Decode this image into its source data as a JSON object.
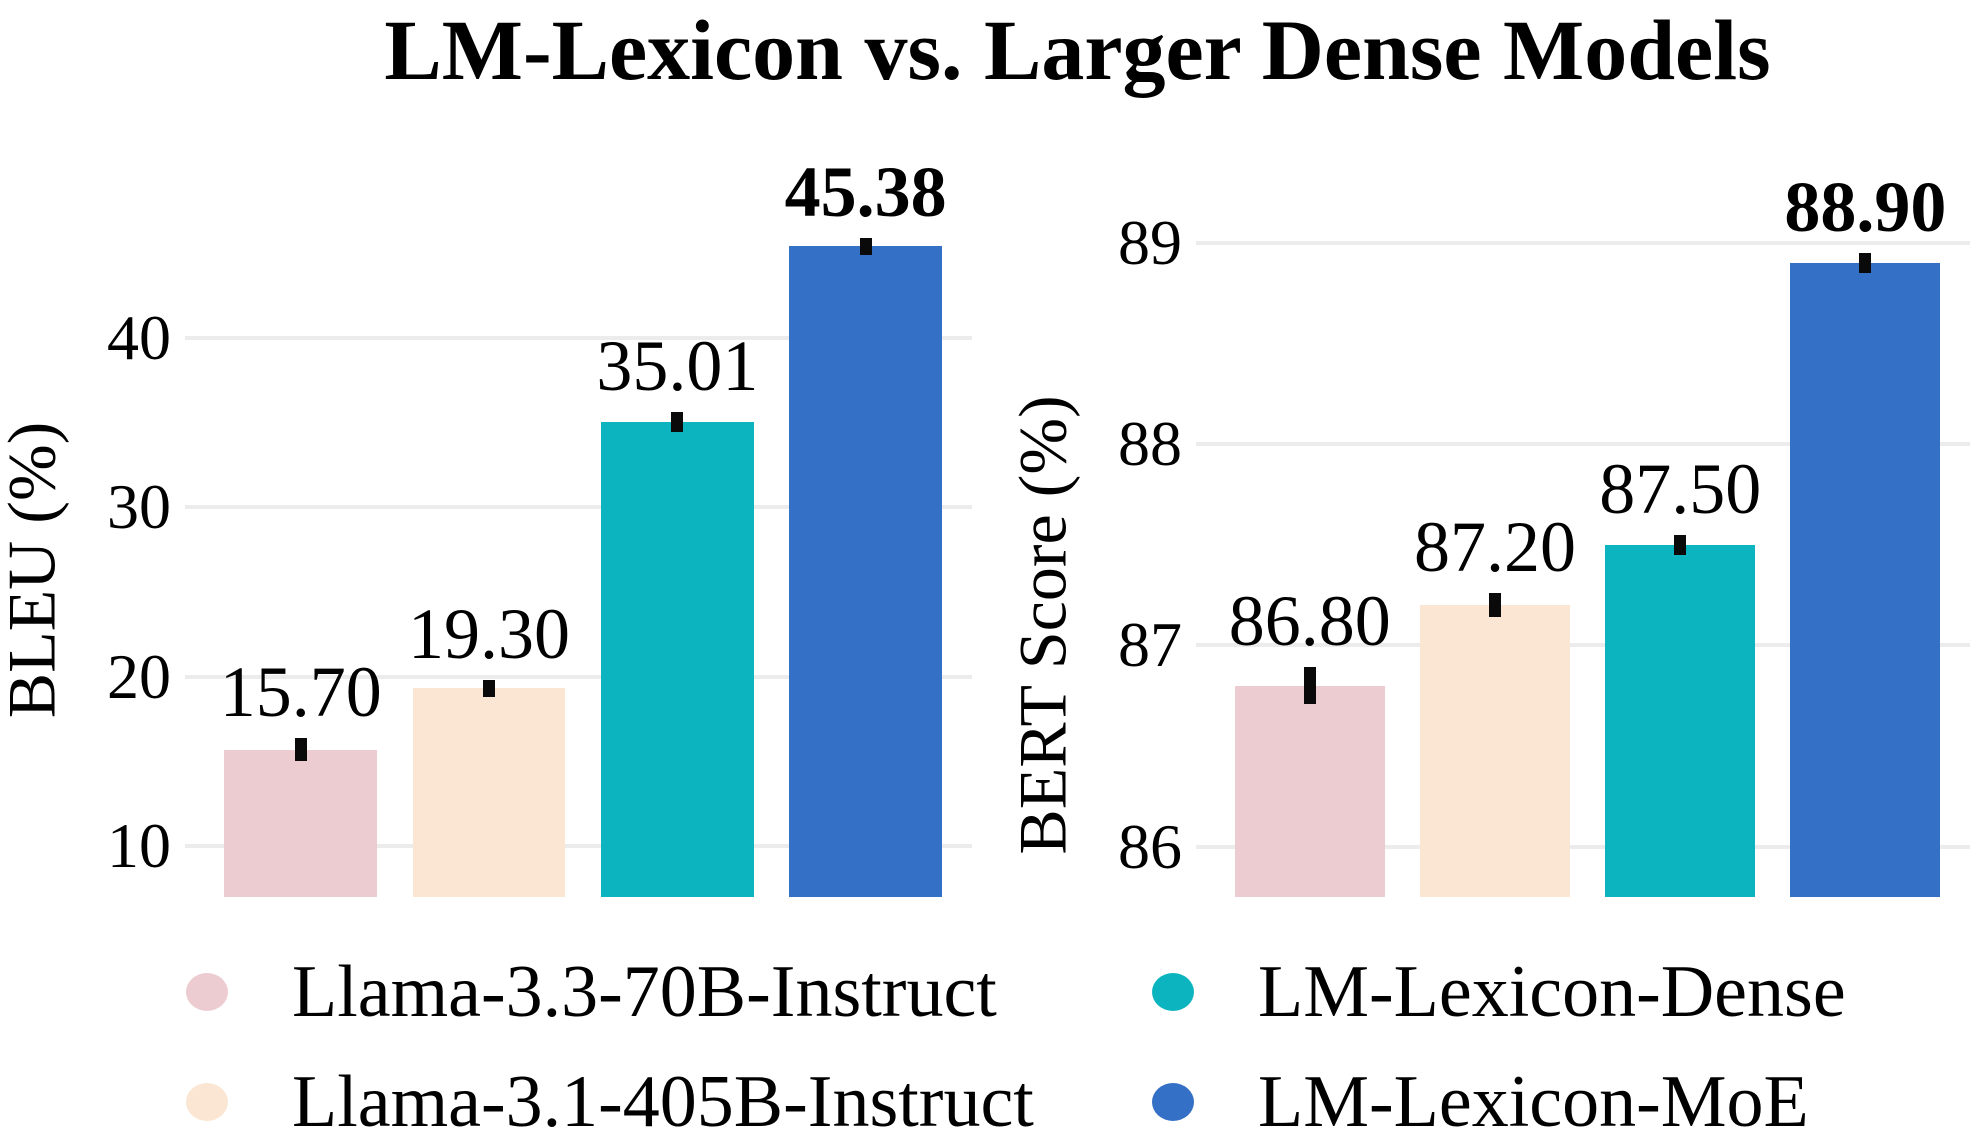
{
  "title": "LM-Lexicon vs. Larger Dense Models",
  "colors": {
    "pink": "#ECCBD1",
    "cream": "#FAE6D2",
    "teal": "#0CB4BF",
    "blue": "#3470C5",
    "grid": "#ECECEC",
    "text": "#000000"
  },
  "chart_data": [
    {
      "type": "bar",
      "name": "bleu",
      "title": "",
      "xlabel": "",
      "ylabel": "BLEU (%)",
      "categories": [
        "Llama-3.3-70B-Instruct",
        "Llama-3.1-405B-Instruct",
        "LM-Lexicon-Dense",
        "LM-Lexicon-MoE"
      ],
      "values": [
        15.7,
        19.3,
        35.01,
        45.38
      ],
      "value_labels": [
        "15.70",
        "19.30",
        "35.01",
        "45.38"
      ],
      "errors": [
        0.7,
        0.5,
        0.6,
        0.5
      ],
      "series_colors": [
        "pink",
        "cream",
        "teal",
        "blue"
      ],
      "ylim": [
        7.0,
        50.0
      ],
      "yticks": [
        10,
        20,
        30,
        40
      ],
      "ytick_labels": [
        "10",
        "20",
        "30",
        "40"
      ],
      "grid": true,
      "bold_value_index": 3,
      "legend_position": "below"
    },
    {
      "type": "bar",
      "name": "bert-score",
      "title": "",
      "xlabel": "",
      "ylabel": "BERT Score (%)",
      "categories": [
        "Llama-3.3-70B-Instruct",
        "Llama-3.1-405B-Instruct",
        "LM-Lexicon-Dense",
        "LM-Lexicon-MoE"
      ],
      "values": [
        86.8,
        87.2,
        87.5,
        88.9
      ],
      "value_labels": [
        "86.80",
        "87.20",
        "87.50",
        "88.90"
      ],
      "errors": [
        0.09,
        0.06,
        0.05,
        0.05
      ],
      "series_colors": [
        "pink",
        "cream",
        "teal",
        "blue"
      ],
      "ylim": [
        85.75,
        89.37
      ],
      "yticks": [
        86,
        87,
        88,
        89
      ],
      "ytick_labels": [
        "86",
        "87",
        "88",
        "89"
      ],
      "grid": true,
      "bold_value_index": 3,
      "legend_position": "below"
    }
  ],
  "legend": {
    "items": [
      {
        "label": "Llama-3.3-70B-Instruct",
        "color": "pink"
      },
      {
        "label": "Llama-3.1-405B-Instruct",
        "color": "cream"
      },
      {
        "label": "LM-Lexicon-Dense",
        "color": "teal"
      },
      {
        "label": "LM-Lexicon-MoE",
        "color": "blue"
      }
    ]
  }
}
